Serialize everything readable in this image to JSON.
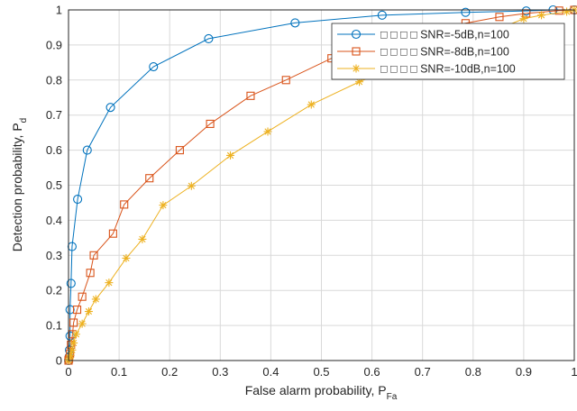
{
  "chart_data": {
    "type": "line",
    "title": "",
    "xlabel": "False alarm probability, P",
    "xlabel_sub": "Fa",
    "ylabel": "Detection probability, P",
    "ylabel_sub": "d",
    "xlim": [
      0,
      1
    ],
    "ylim": [
      0,
      1
    ],
    "xticks": [
      "0",
      "0.1",
      "0.2",
      "0.3",
      "0.4",
      "0.5",
      "0.6",
      "0.7",
      "0.8",
      "0.9",
      "1"
    ],
    "yticks": [
      "0",
      "0.1",
      "0.2",
      "0.3",
      "0.4",
      "0.5",
      "0.6",
      "0.7",
      "0.8",
      "0.9",
      "1"
    ],
    "grid": true,
    "legend_position": "top-right",
    "series": [
      {
        "name": "□ □ □ □ SNR=-5dB,n=100",
        "marker": "circle",
        "color": "#0072BD",
        "points": [
          [
            0,
            0
          ],
          [
            0.001,
            0.01
          ],
          [
            0.002,
            0.03
          ],
          [
            0.003,
            0.07
          ],
          [
            0.003,
            0.145
          ],
          [
            0.005,
            0.22
          ],
          [
            0.007,
            0.325
          ],
          [
            0.018,
            0.46
          ],
          [
            0.037,
            0.6
          ],
          [
            0.083,
            0.722
          ],
          [
            0.168,
            0.838
          ],
          [
            0.277,
            0.918
          ],
          [
            0.448,
            0.963
          ],
          [
            0.62,
            0.985
          ],
          [
            0.785,
            0.993
          ],
          [
            0.905,
            0.997
          ],
          [
            0.958,
            1.0
          ],
          [
            1.0,
            1.0
          ]
        ]
      },
      {
        "name": "□ □ □ □ SNR=-8dB,n=100",
        "marker": "square",
        "color": "#D95319",
        "points": [
          [
            0,
            0
          ],
          [
            0.001,
            0.005
          ],
          [
            0.003,
            0.02
          ],
          [
            0.005,
            0.045
          ],
          [
            0.008,
            0.075
          ],
          [
            0.01,
            0.108
          ],
          [
            0.017,
            0.145
          ],
          [
            0.027,
            0.182
          ],
          [
            0.043,
            0.25
          ],
          [
            0.05,
            0.3
          ],
          [
            0.088,
            0.362
          ],
          [
            0.11,
            0.445
          ],
          [
            0.16,
            0.52
          ],
          [
            0.22,
            0.6
          ],
          [
            0.28,
            0.675
          ],
          [
            0.36,
            0.755
          ],
          [
            0.43,
            0.8
          ],
          [
            0.52,
            0.862
          ],
          [
            0.6,
            0.9
          ],
          [
            0.715,
            0.942
          ],
          [
            0.785,
            0.962
          ],
          [
            0.852,
            0.98
          ],
          [
            0.905,
            0.99
          ],
          [
            0.97,
            0.998
          ],
          [
            1.0,
            1.0
          ]
        ]
      },
      {
        "name": "□ □ □ □  SNR=-10dB,n=100",
        "marker": "asterisk",
        "color": "#EDB120",
        "points": [
          [
            0,
            0
          ],
          [
            0.002,
            0.005
          ],
          [
            0.004,
            0.015
          ],
          [
            0.007,
            0.03
          ],
          [
            0.01,
            0.05
          ],
          [
            0.015,
            0.075
          ],
          [
            0.027,
            0.105
          ],
          [
            0.04,
            0.14
          ],
          [
            0.054,
            0.175
          ],
          [
            0.08,
            0.222
          ],
          [
            0.114,
            0.292
          ],
          [
            0.146,
            0.346
          ],
          [
            0.187,
            0.443
          ],
          [
            0.243,
            0.498
          ],
          [
            0.32,
            0.585
          ],
          [
            0.394,
            0.653
          ],
          [
            0.48,
            0.73
          ],
          [
            0.575,
            0.795
          ],
          [
            0.66,
            0.848
          ],
          [
            0.745,
            0.895
          ],
          [
            0.82,
            0.928
          ],
          [
            0.9,
            0.975
          ],
          [
            0.935,
            0.985
          ],
          [
            0.985,
            0.995
          ],
          [
            1.0,
            1.0
          ]
        ]
      }
    ]
  }
}
